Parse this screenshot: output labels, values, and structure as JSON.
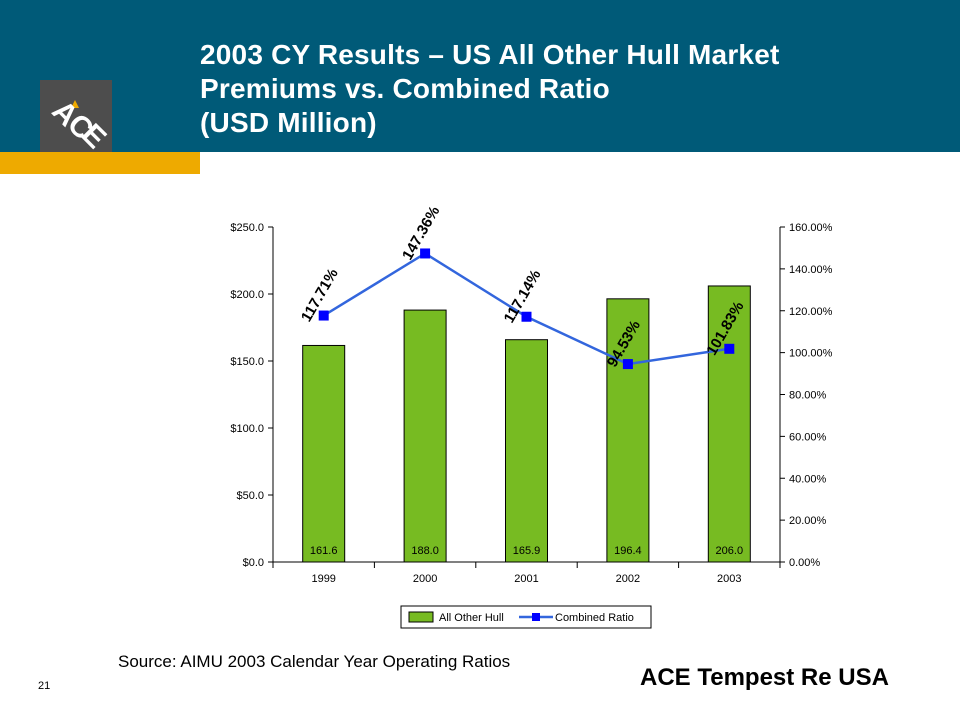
{
  "header": {
    "title_lines": [
      "2003 CY Results – US All Other Hull Market",
      "Premiums vs. Combined Ratio",
      "(USD Million)"
    ],
    "logo_text": "ACE"
  },
  "colors": {
    "header_band": "#005a78",
    "gold": "#eeaa00",
    "logo_box": "#4d4d4d",
    "bar_fill": "#77bb22",
    "line": "#3366dd",
    "marker": "#0000ff"
  },
  "chart_data": {
    "type": "bar",
    "categories": [
      "1999",
      "2000",
      "2001",
      "2002",
      "2003"
    ],
    "series": [
      {
        "name": "All Other Hull",
        "type": "bar",
        "axis": "left",
        "values": [
          161.6,
          188.0,
          165.9,
          196.4,
          206.0
        ],
        "labels": [
          "161.6",
          "188.0",
          "165.9",
          "196.4",
          "206.0"
        ]
      },
      {
        "name": "Combined Ratio",
        "type": "line",
        "axis": "right",
        "values": [
          117.71,
          147.36,
          117.14,
          94.53,
          101.83
        ],
        "labels": [
          "117.71%",
          "147.36%",
          "117.14%",
          "94.53%",
          "101.83%"
        ]
      }
    ],
    "y_left": {
      "ylim": [
        0,
        250
      ],
      "ticks": [
        "$0.0",
        "$50.0",
        "$100.0",
        "$150.0",
        "$200.0",
        "$250.0"
      ]
    },
    "y_right": {
      "ylim": [
        0,
        160
      ],
      "ticks": [
        "0.00%",
        "20.00%",
        "40.00%",
        "60.00%",
        "80.00%",
        "100.00%",
        "120.00%",
        "140.00%",
        "160.00%"
      ]
    },
    "legend": {
      "position": "bottom",
      "entries": [
        "All Other Hull",
        "Combined Ratio"
      ]
    },
    "grid": false
  },
  "footer": {
    "source": "Source: AIMU 2003 Calendar Year  Operating Ratios",
    "page_number": "21",
    "company": "ACE Tempest Re USA"
  }
}
